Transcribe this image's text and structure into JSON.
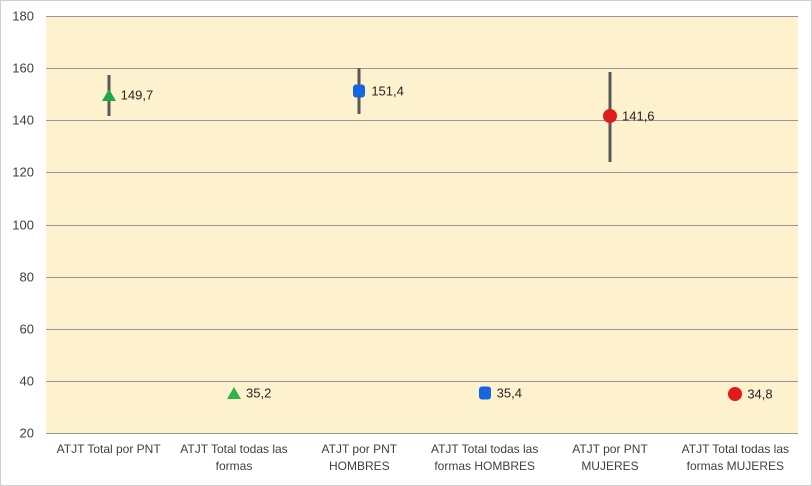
{
  "chart_data": {
    "type": "scatter",
    "title": "",
    "xlabel": "",
    "ylabel": "",
    "legend": "none",
    "grid": true,
    "number_format": "decimal-comma",
    "categories": [
      "ATJT Total por PNT",
      "ATJT Total todas las formas",
      "ATJT por PNT HOMBRES",
      "ATJT Total todas las formas HOMBRES",
      "ATJT por PNT MUJERES",
      "ATJT Total todas las formas MUJERES"
    ],
    "points": [
      {
        "category_index": 0,
        "value": 149.7,
        "label": "149,7",
        "marker": "triangle",
        "color": "#1ea64b",
        "error_low": 141.5,
        "error_high": 157.5
      },
      {
        "category_index": 1,
        "value": 35.2,
        "label": "35,2",
        "marker": "triangle",
        "color": "#2eb24c",
        "error_low": null,
        "error_high": null
      },
      {
        "category_index": 2,
        "value": 151.4,
        "label": "151,4",
        "marker": "square",
        "color": "#1566e2",
        "error_low": 142.5,
        "error_high": 160
      },
      {
        "category_index": 3,
        "value": 35.4,
        "label": "35,4",
        "marker": "square",
        "color": "#1566e2",
        "error_low": null,
        "error_high": null
      },
      {
        "category_index": 4,
        "value": 141.6,
        "label": "141,6",
        "marker": "circle",
        "color": "#e11b1b",
        "error_low": 124,
        "error_high": 158.5
      },
      {
        "category_index": 5,
        "value": 34.8,
        "label": "34,8",
        "marker": "circle",
        "color": "#e11b1b",
        "error_low": null,
        "error_high": null
      }
    ],
    "yaxis": {
      "min": 20,
      "max": 180,
      "step": 20,
      "ticks": [
        180,
        160,
        140,
        120,
        100,
        80,
        60,
        40,
        20
      ]
    },
    "colors": {
      "plot_background": "#fdf1ce",
      "gridline": "#979797",
      "error_bar": "#595959",
      "axis_text": "#404040",
      "data_label_text": "#262626",
      "chart_border": "#d0cece",
      "chart_background": "#ffffff"
    }
  }
}
